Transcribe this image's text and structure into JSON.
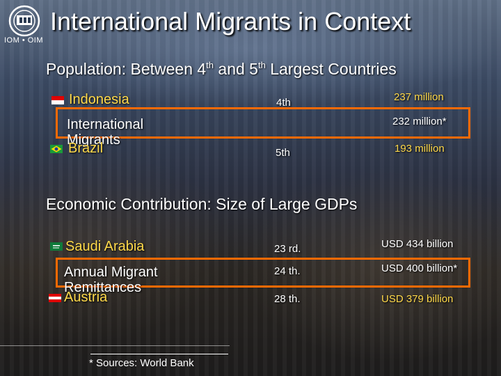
{
  "header": {
    "logo_text": "IOM • OIM",
    "title": "International Migrants in Context"
  },
  "population": {
    "heading": "Population: Between 4",
    "heading_sup1": "th",
    "heading_mid": " and 5",
    "heading_sup2": "th",
    "heading_end": " Largest Countries",
    "rows": [
      {
        "name": "Indonesia",
        "rank": "4th",
        "value": "237 million"
      },
      {
        "name": "International Migrants",
        "rank": "",
        "value": "232 million*"
      },
      {
        "name": "Brazil",
        "rank": "5th",
        "value": "193 million"
      }
    ]
  },
  "gdp": {
    "heading": "Economic Contribution: Size of Large GDPs",
    "rows": [
      {
        "name": "Saudi Arabia",
        "rank": "23 rd.",
        "value": "USD 434 billion"
      },
      {
        "name": "Annual Migrant Remittances",
        "rank": "24 th.",
        "value": "USD 400 billion*"
      },
      {
        "name": "Austria",
        "rank": "28 th.",
        "value": "USD 379 billion"
      }
    ]
  },
  "footnote": "* Sources:  World Bank",
  "colors": {
    "highlight": "#ff6a00",
    "accent_text": "#ffd94a"
  }
}
